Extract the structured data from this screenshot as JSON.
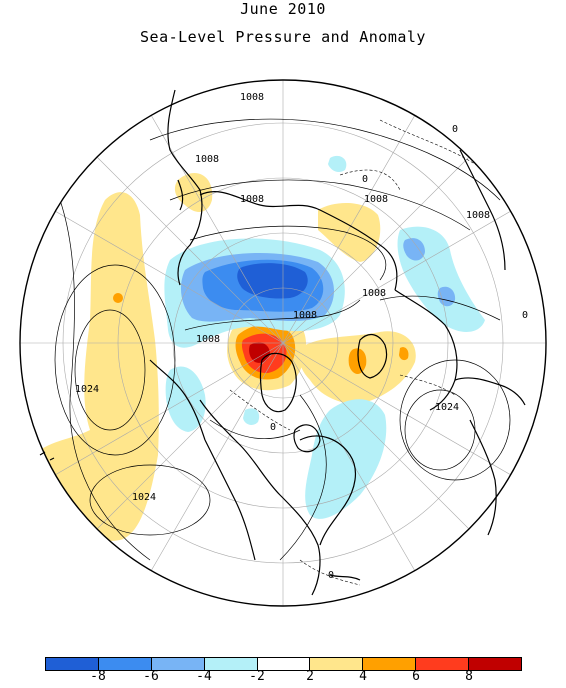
{
  "title": "June 2010",
  "subtitle": "Sea-Level Pressure and Anomaly",
  "contour_labels": {
    "l1008a": "1008",
    "l1008b": "1008",
    "l1008c": "1008",
    "l1008d": "1008",
    "l1008e": "1008",
    "l1008f": "1008",
    "l1008g": "1008",
    "l1008h": "1008",
    "l1024a": "1024",
    "l1024b": "1024",
    "l1024c": "1024",
    "l0a": "0",
    "l0b": "0",
    "l0c": "0",
    "l0d": "0",
    "l0e": "0"
  },
  "colorbar": {
    "colors": [
      "#1f5fd6",
      "#3c8cf0",
      "#78b4f5",
      "#b4f0f8",
      "#ffffff",
      "#ffe68c",
      "#ffa000",
      "#ff3c1e",
      "#c00000"
    ],
    "tick_labels": [
      "-8",
      "-6",
      "-4",
      "-2",
      "2",
      "4",
      "6",
      "8"
    ]
  },
  "colors": {
    "neg_strong": "#1f5fd6",
    "neg_mid": "#3c8cf0",
    "neg_light": "#78b4f5",
    "neg_pale": "#b4f0f8",
    "pos_pale": "#ffe68c",
    "pos_mid": "#ffa000",
    "pos_strong": "#ff3c1e",
    "pos_max": "#c00000"
  }
}
